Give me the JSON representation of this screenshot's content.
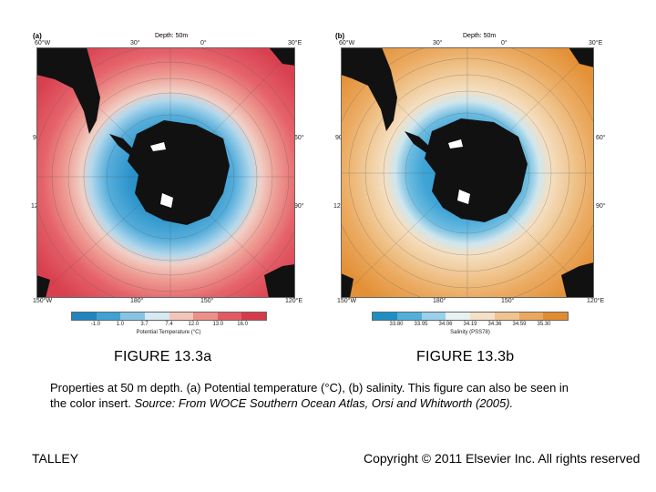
{
  "panel_a": {
    "tag": "(a)",
    "depth": "Depth: 50m",
    "top_labels": [
      "60°W",
      "30°",
      "0°",
      "30°E"
    ],
    "bottom_labels": [
      "150°W",
      "180°",
      "150°",
      "120°E"
    ],
    "left_labels": [
      "90°",
      "120°"
    ],
    "right_labels": [
      "60°",
      "90°"
    ],
    "colorbar_ticks": [
      "-1.0",
      "1.0",
      "3.7",
      "7.4",
      "12.0",
      "13.0",
      "16.0"
    ],
    "colorbar_title": "Potential Temperature (°C)",
    "colors": [
      "#1e85c1",
      "#3fa1d4",
      "#86c4e3",
      "#d7e9f2",
      "#f4c6ba",
      "#ee8f88",
      "#e45a61",
      "#d63a4a"
    ]
  },
  "panel_b": {
    "tag": "(b)",
    "depth": "Depth: 50m",
    "top_labels": [
      "60°W",
      "30°",
      "0°",
      "30°E"
    ],
    "bottom_labels": [
      "150°W",
      "180°",
      "150°",
      "120°E"
    ],
    "left_labels": [
      "90°",
      "120°"
    ],
    "right_labels": [
      "60°",
      "90°"
    ],
    "colorbar_ticks": [
      "33.80",
      "33.95",
      "34.06",
      "34.19",
      "34.36",
      "34.59",
      "35.30"
    ],
    "colorbar_title": "Salinity (PSS78)",
    "colors": [
      "#1d8fc4",
      "#4fb0db",
      "#97d1ea",
      "#e7f1f2",
      "#f4e0c6",
      "#f0c48e",
      "#eba75d",
      "#e28c2f"
    ]
  },
  "figure_a_label": "FIGURE 13.3a",
  "figure_b_label": "FIGURE 13.3b",
  "caption_plain": "Properties at 50 m depth. (a) Potential temperature (°C), (b) salinity. This figure can also be seen in the color insert. ",
  "caption_source": "Source: From WOCE Southern Ocean Atlas, Orsi and Whitworth (2005).",
  "footer_left": "TALLEY",
  "footer_right": "Copyright © 2011 Elsevier Inc. All rights reserved"
}
